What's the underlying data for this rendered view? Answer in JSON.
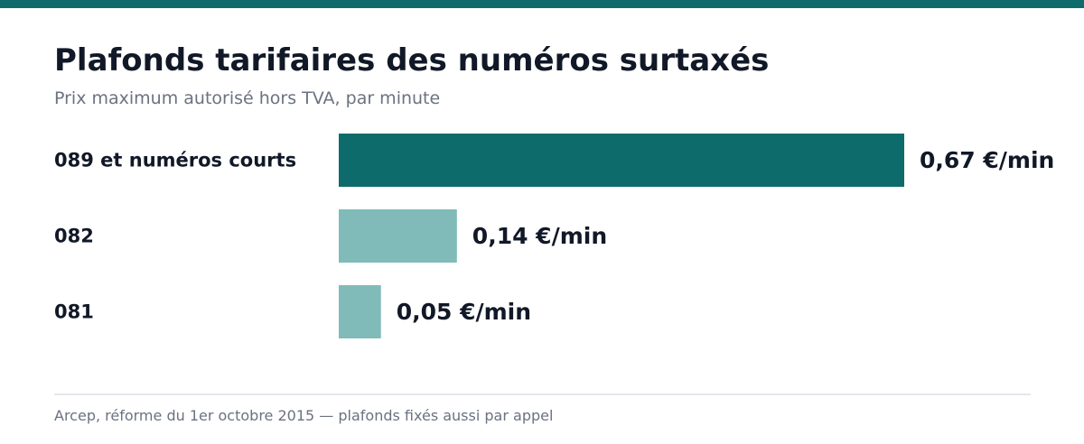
{
  "header": {
    "title": "Plafonds tarifaires des numéros surtaxés",
    "subtitle": "Prix maximum autorisé hors TVA, par minute"
  },
  "footer": {
    "source": "Arcep, réforme du 1er octobre 2015 — plafonds fixés aussi par appel"
  },
  "colors": {
    "accent": "#0e6b6b",
    "secondary": "#80bbb9",
    "text": "#111827",
    "muted": "#6b7280"
  },
  "chart_data": {
    "type": "bar",
    "orientation": "horizontal",
    "title": "Plafonds tarifaires des numéros surtaxés",
    "subtitle": "Prix maximum autorisé hors TVA, par minute",
    "unit": "€/min",
    "categories": [
      "089 et numéros courts",
      "082",
      "081"
    ],
    "values": [
      0.67,
      0.14,
      0.05
    ],
    "value_labels": [
      "0,67 €/min",
      "0,14 €/min",
      "0,05 €/min"
    ],
    "highlight_index": 0,
    "xlim": [
      0,
      0.67
    ],
    "grid": false,
    "legend": "none"
  }
}
